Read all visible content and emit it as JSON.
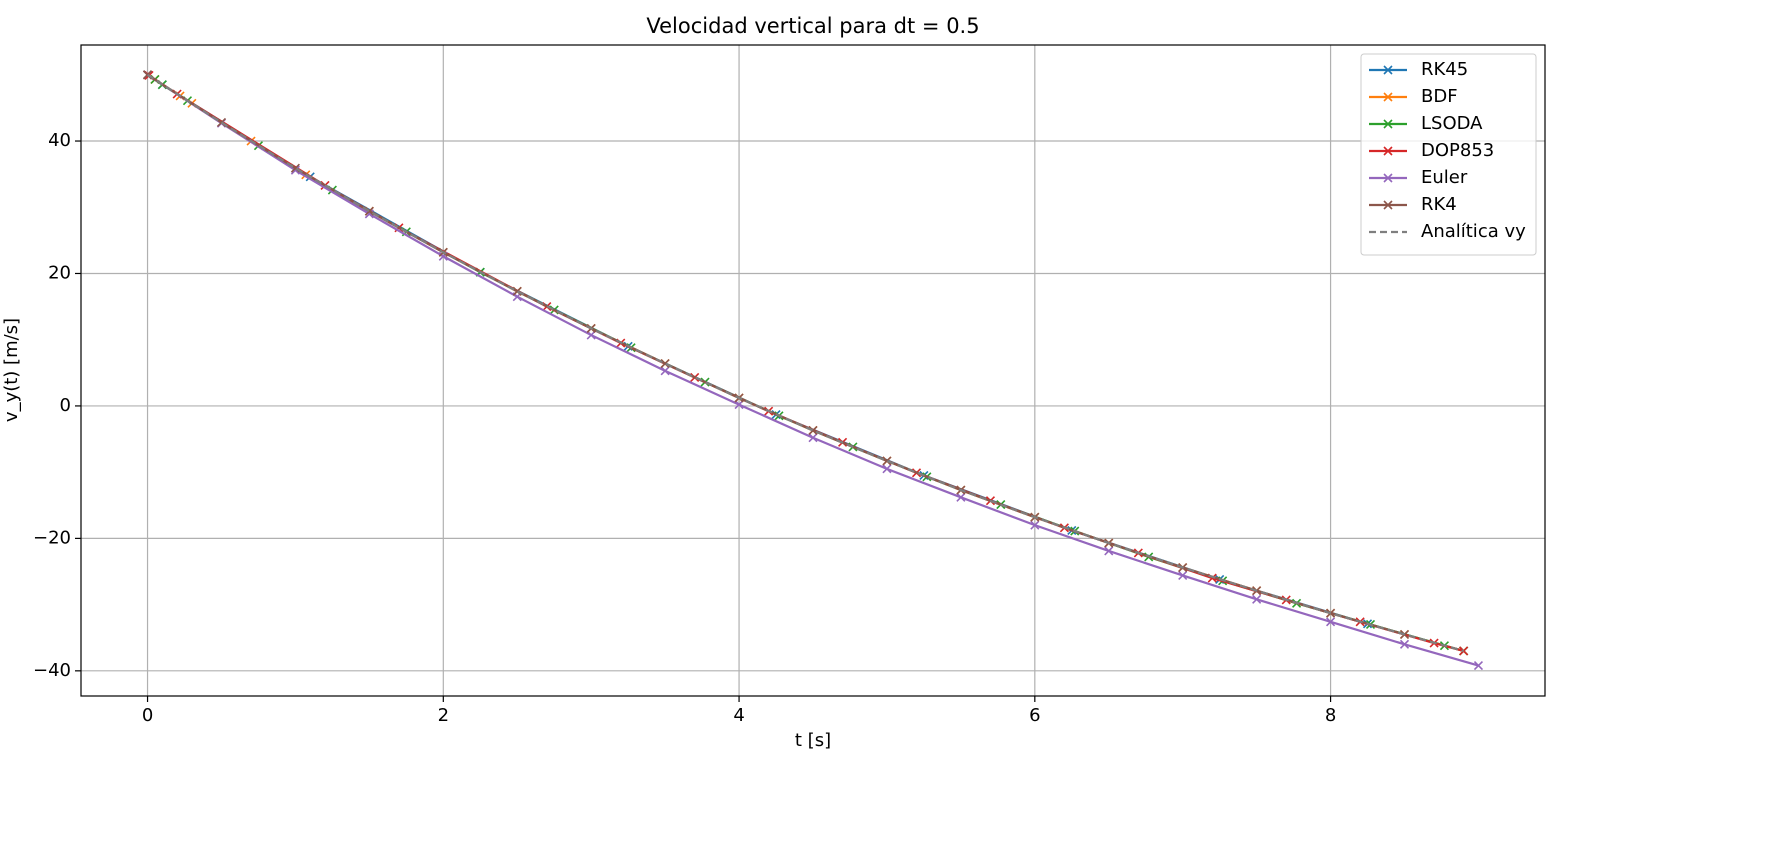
{
  "chart_data": {
    "type": "line",
    "title": "Velocidad vertical para dt = 0.5",
    "xlabel": "t [s]",
    "ylabel": "v_y(t) [m/s]",
    "xlim": [
      -0.45,
      9.45
    ],
    "ylim": [
      -43.8,
      54.5
    ],
    "xticks": [
      0,
      2,
      4,
      6,
      8
    ],
    "yticks": [
      {
        "value": -40,
        "label": "−40"
      },
      {
        "value": -20,
        "label": "−20"
      },
      0,
      20,
      40
    ],
    "grid": true,
    "legend": "upper right",
    "series": [
      {
        "name": "RK45",
        "color": "#1f77b4",
        "marker": "x",
        "linestyle": "solid",
        "x": [
          0,
          0.1,
          1.1,
          2.25,
          3.25,
          4.25,
          5.25,
          6.25,
          7.25,
          8.25,
          8.9
        ],
        "values": [
          50,
          48.5,
          34.6,
          20.2,
          9.0,
          -1.3,
          -10.5,
          -18.8,
          -26.2,
          -32.9,
          -37.0
        ]
      },
      {
        "name": "BDF",
        "color": "#ff7f0e",
        "marker": "x",
        "linestyle": "solid",
        "x": [
          0,
          0.05,
          0.22,
          0.3,
          0.7,
          1.07,
          1.5,
          2.0,
          2.5,
          3.0,
          3.5,
          4.0,
          4.5,
          5.0,
          5.5,
          6.0,
          6.5,
          7.0,
          7.5,
          8.0,
          8.5,
          8.9
        ],
        "values": [
          50,
          49.3,
          46.8,
          45.7,
          40.0,
          34.9,
          29.4,
          23.2,
          17.3,
          11.7,
          6.4,
          1.2,
          -3.7,
          -8.3,
          -12.7,
          -16.8,
          -20.7,
          -24.4,
          -27.9,
          -31.3,
          -34.5,
          -37.0
        ]
      },
      {
        "name": "LSODA",
        "color": "#2ca02c",
        "marker": "x",
        "linestyle": "solid",
        "x": [
          0,
          0.05,
          0.1,
          0.27,
          0.75,
          1.25,
          1.75,
          2.25,
          2.75,
          3.27,
          3.77,
          4.27,
          4.77,
          5.27,
          5.77,
          6.27,
          6.77,
          7.27,
          7.77,
          8.27,
          8.77,
          8.9
        ],
        "values": [
          50,
          49.3,
          48.5,
          46.1,
          39.3,
          32.6,
          26.3,
          20.2,
          14.5,
          8.8,
          3.6,
          -1.5,
          -6.2,
          -10.7,
          -14.9,
          -18.9,
          -22.8,
          -26.4,
          -29.8,
          -33.0,
          -36.2,
          -37.0
        ]
      },
      {
        "name": "DOP853",
        "color": "#d62728",
        "marker": "x",
        "linestyle": "solid",
        "x": [
          0,
          0.01,
          0.2,
          1.2,
          1.7,
          2.7,
          3.2,
          3.7,
          4.2,
          4.7,
          5.2,
          5.7,
          6.2,
          6.7,
          7.2,
          7.7,
          8.2,
          8.7,
          8.9
        ],
        "values": [
          50,
          49.9,
          47.1,
          33.3,
          26.9,
          15.0,
          9.5,
          4.3,
          -0.8,
          -5.5,
          -10.1,
          -14.3,
          -18.4,
          -22.2,
          -26.0,
          -29.3,
          -32.6,
          -35.8,
          -37.0
        ]
      },
      {
        "name": "Euler",
        "color": "#9467bd",
        "marker": "x",
        "linestyle": "solid",
        "x": [
          0,
          0.5,
          1,
          1.5,
          2,
          2.5,
          3,
          3.5,
          4,
          4.5,
          5,
          5.5,
          6,
          6.5,
          7,
          7.5,
          8,
          8.5,
          9
        ],
        "values": [
          50,
          42.7,
          35.6,
          29.0,
          22.6,
          16.5,
          10.7,
          5.3,
          0.2,
          -4.8,
          -9.5,
          -13.8,
          -18.0,
          -21.9,
          -25.6,
          -29.2,
          -32.6,
          -36.0,
          -39.2
        ]
      },
      {
        "name": "RK4",
        "color": "#8c564b",
        "marker": "x",
        "linestyle": "solid",
        "x": [
          0,
          0.5,
          1,
          1.5,
          2,
          2.5,
          3,
          3.5,
          4,
          4.5,
          5,
          5.5,
          6,
          6.5,
          7,
          7.5,
          8,
          8.5
        ],
        "values": [
          50,
          42.8,
          35.9,
          29.4,
          23.2,
          17.3,
          11.7,
          6.4,
          1.2,
          -3.7,
          -8.3,
          -12.7,
          -16.8,
          -20.7,
          -24.4,
          -27.9,
          -31.3,
          -34.5
        ]
      },
      {
        "name": "Analítica vy",
        "color": "#7f7f7f",
        "marker": "none",
        "linestyle": "dashed",
        "x": [
          0,
          0.5,
          1,
          1.5,
          2,
          2.5,
          3,
          3.5,
          4,
          4.5,
          5,
          5.5,
          6,
          6.5,
          7,
          7.5,
          8,
          8.5,
          8.9
        ],
        "values": [
          50,
          42.8,
          35.9,
          29.4,
          23.2,
          17.3,
          11.7,
          6.4,
          1.2,
          -3.7,
          -8.3,
          -12.7,
          -16.8,
          -20.7,
          -24.4,
          -27.9,
          -31.3,
          -34.5,
          -37.0
        ]
      }
    ]
  }
}
